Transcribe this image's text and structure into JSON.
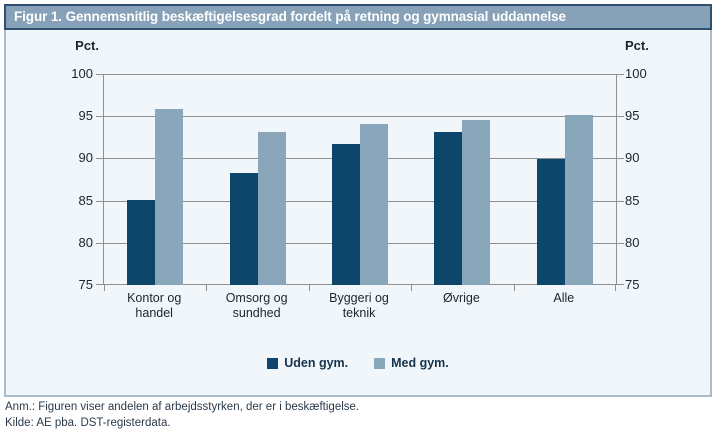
{
  "figure": {
    "title": "Figur 1. Gennemsnitlig beskæftigelsesgrad fordelt på retning og gymnasial uddannelse",
    "y_axis_title_left": "Pct.",
    "y_axis_title_right": "Pct.",
    "footnote": "Anm.: Figuren viser andelen af arbejdsstyrken, der er i beskæftigelse.",
    "source": "Kilde: AE pba. DST-registerdata."
  },
  "chart_data": {
    "type": "bar",
    "categories": [
      "Kontor og handel",
      "Omsorg og sundhed",
      "Byggeri og teknik",
      "Øvrige",
      "Alle"
    ],
    "series": [
      {
        "name": "Uden gym.",
        "color": "#0e466b",
        "values": [
          85.1,
          88.3,
          91.7,
          93.1,
          89.9
        ]
      },
      {
        "name": "Med gym.",
        "color": "#8aa6ba",
        "values": [
          95.9,
          93.1,
          94.1,
          94.6,
          95.2
        ]
      }
    ],
    "ylabel": "Pct.",
    "ylim": [
      75,
      100
    ],
    "yticks": [
      75,
      80,
      85,
      90,
      95,
      100
    ],
    "grid": true,
    "legend_position": "bottom"
  },
  "colors": {
    "title_bar_bg": "#87a2b8",
    "title_bar_border": "#2e4f6e",
    "body_bg": "#f0f6fa",
    "body_border": "#a9bdcb",
    "gridline": "#8f8f8f",
    "series_dark": "#0e466b",
    "series_light": "#8aa6ba"
  }
}
